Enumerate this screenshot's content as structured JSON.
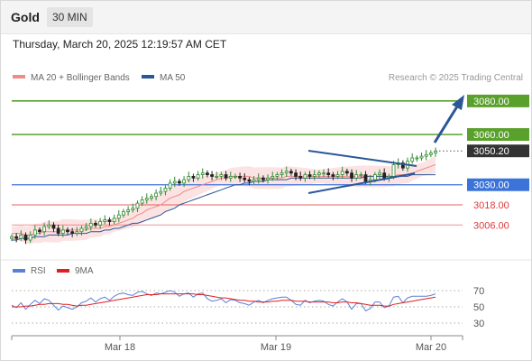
{
  "header": {
    "symbol": "Gold",
    "timeframe": "30 MIN"
  },
  "timestamp": "Thursday, March 20, 2025 12:19:57 AM CET",
  "legend": {
    "items": [
      {
        "label": "MA 20 + Bollinger Bands",
        "color": "#f08c86"
      },
      {
        "label": "MA 50",
        "color": "#2b5797"
      }
    ]
  },
  "credit": "Research © 2025 Trading Central",
  "rsi_legend": {
    "items": [
      {
        "label": "RSI",
        "color": "#5b7fd6"
      },
      {
        "label": "9MA",
        "color": "#e02020"
      }
    ]
  },
  "colors": {
    "resistance": "#5aa02c",
    "pivot": "#3b73d9",
    "support": "#e03a3a",
    "current": "#333333",
    "candle_up": "#2e8b2e",
    "candle_down": "#222222",
    "band_fill": "#fbdada",
    "ma20": "#f08c86",
    "ma50": "#2b5797",
    "arrow": "#2b5797",
    "rsi": "#5b7fd6",
    "rsi_ma": "#e02020"
  },
  "chart_data": [
    {
      "type": "line",
      "name": "price",
      "x_ticks": [
        "Mar 18",
        "Mar 19",
        "Mar 20"
      ],
      "ylim": [
        2990,
        3088
      ],
      "levels": [
        {
          "label": "3080.00",
          "value": 3080.0,
          "kind": "resistance"
        },
        {
          "label": "3060.00",
          "value": 3060.0,
          "kind": "resistance"
        },
        {
          "label": "3050.20",
          "value": 3050.2,
          "kind": "current"
        },
        {
          "label": "3030.00",
          "value": 3030.0,
          "kind": "pivot"
        },
        {
          "label": "3018.00",
          "value": 3018.0,
          "kind": "support"
        },
        {
          "label": "3006.00",
          "value": 3006.0,
          "kind": "support"
        }
      ],
      "series_close": [
        2999,
        2998,
        3000,
        2997,
        3000,
        3003,
        3002,
        3005,
        3006,
        3004,
        3001,
        3003,
        3002,
        3001,
        3002,
        3004,
        3005,
        3007,
        3006,
        3008,
        3009,
        3008,
        3010,
        3012,
        3014,
        3015,
        3016,
        3019,
        3021,
        3022,
        3023,
        3025,
        3026,
        3028,
        3031,
        3032,
        3031,
        3033,
        3035,
        3034,
        3036,
        3037,
        3036,
        3035,
        3035,
        3036,
        3034,
        3035,
        3035,
        3034,
        3033,
        3032,
        3033,
        3034,
        3033,
        3034,
        3035,
        3036,
        3037,
        3038,
        3037,
        3035,
        3034,
        3036,
        3035,
        3036,
        3037,
        3037,
        3036,
        3035,
        3036,
        3038,
        3037,
        3034,
        3036,
        3036,
        3032,
        3033,
        3036,
        3037,
        3034,
        3035,
        3042,
        3043,
        3040,
        3044,
        3046,
        3046,
        3047,
        3048,
        3049,
        3050
      ],
      "ma20": [
        3001,
        3001,
        3001,
        3000,
        3000,
        3001,
        3001,
        3002,
        3002,
        3002,
        3002,
        3003,
        3003,
        3003,
        3003,
        3003,
        3003,
        3004,
        3004,
        3004,
        3005,
        3005,
        3006,
        3007,
        3008,
        3009,
        3010,
        3012,
        3013,
        3015,
        3016,
        3017,
        3018,
        3020,
        3022,
        3023,
        3024,
        3026,
        3027,
        3028,
        3029,
        3030,
        3031,
        3032,
        3033,
        3034,
        3034,
        3035,
        3035,
        3035,
        3035,
        3035,
        3034,
        3034,
        3034,
        3034,
        3034,
        3034,
        3034,
        3035,
        3035,
        3035,
        3035,
        3035,
        3035,
        3035,
        3035,
        3035,
        3035,
        3035,
        3035,
        3035,
        3035,
        3035,
        3035,
        3035,
        3035,
        3035,
        3035,
        3035,
        3035,
        3035,
        3035,
        3036,
        3036,
        3036,
        3037,
        3038,
        3039,
        3040,
        3041,
        3042
      ],
      "ma50": [
        2997,
        2997,
        2998,
        2998,
        2998,
        2999,
        2999,
        2999,
        3000,
        3000,
        3000,
        3000,
        3000,
        3001,
        3001,
        3001,
        3001,
        3002,
        3002,
        3002,
        3003,
        3003,
        3004,
        3004,
        3005,
        3006,
        3007,
        3007,
        3008,
        3009,
        3010,
        3011,
        3012,
        3014,
        3015,
        3016,
        3018,
        3019,
        3020,
        3021,
        3022,
        3023,
        3024,
        3025,
        3026,
        3027,
        3028,
        3029,
        3030,
        3030,
        3031,
        3031,
        3032,
        3032,
        3032,
        3033,
        3033,
        3033,
        3033,
        3033,
        3034,
        3034,
        3034,
        3034,
        3034,
        3034,
        3034,
        3034,
        3034,
        3034,
        3034,
        3034,
        3034,
        3034,
        3034,
        3034,
        3035,
        3035,
        3035,
        3035,
        3035,
        3035,
        3035,
        3035,
        3035,
        3035,
        3036,
        3036,
        3036,
        3036,
        3036,
        3036
      ]
    },
    {
      "type": "line",
      "name": "rsi",
      "y_ticks": [
        "70",
        "50",
        "30"
      ],
      "ylim": [
        20,
        80
      ],
      "rsi": [
        52,
        49,
        55,
        47,
        53,
        58,
        54,
        60,
        58,
        52,
        46,
        51,
        49,
        47,
        50,
        55,
        57,
        61,
        56,
        60,
        62,
        58,
        63,
        66,
        67,
        65,
        64,
        68,
        69,
        66,
        64,
        67,
        66,
        68,
        70,
        68,
        63,
        66,
        67,
        62,
        66,
        67,
        60,
        57,
        58,
        60,
        55,
        59,
        58,
        55,
        54,
        52,
        56,
        58,
        55,
        58,
        60,
        61,
        62,
        62,
        58,
        53,
        52,
        58,
        55,
        57,
        58,
        57,
        53,
        51,
        56,
        60,
        56,
        47,
        54,
        54,
        45,
        48,
        56,
        56,
        49,
        51,
        62,
        63,
        55,
        61,
        63,
        63,
        63,
        63,
        64,
        66
      ],
      "rsi_ma": [
        50,
        50,
        50,
        51,
        51,
        52,
        53,
        53,
        54,
        54,
        54,
        53,
        53,
        52,
        51,
        52,
        52,
        53,
        54,
        55,
        56,
        57,
        58,
        59,
        60,
        61,
        62,
        63,
        64,
        65,
        65,
        65,
        66,
        66,
        66,
        66,
        66,
        66,
        66,
        66,
        65,
        65,
        64,
        63,
        62,
        61,
        61,
        60,
        59,
        58,
        58,
        57,
        57,
        56,
        56,
        56,
        57,
        57,
        58,
        58,
        58,
        57,
        57,
        57,
        56,
        56,
        56,
        56,
        56,
        55,
        55,
        56,
        56,
        55,
        55,
        54,
        53,
        52,
        52,
        52,
        51,
        51,
        53,
        54,
        55,
        56,
        57,
        58,
        59,
        60,
        61,
        62
      ]
    }
  ]
}
